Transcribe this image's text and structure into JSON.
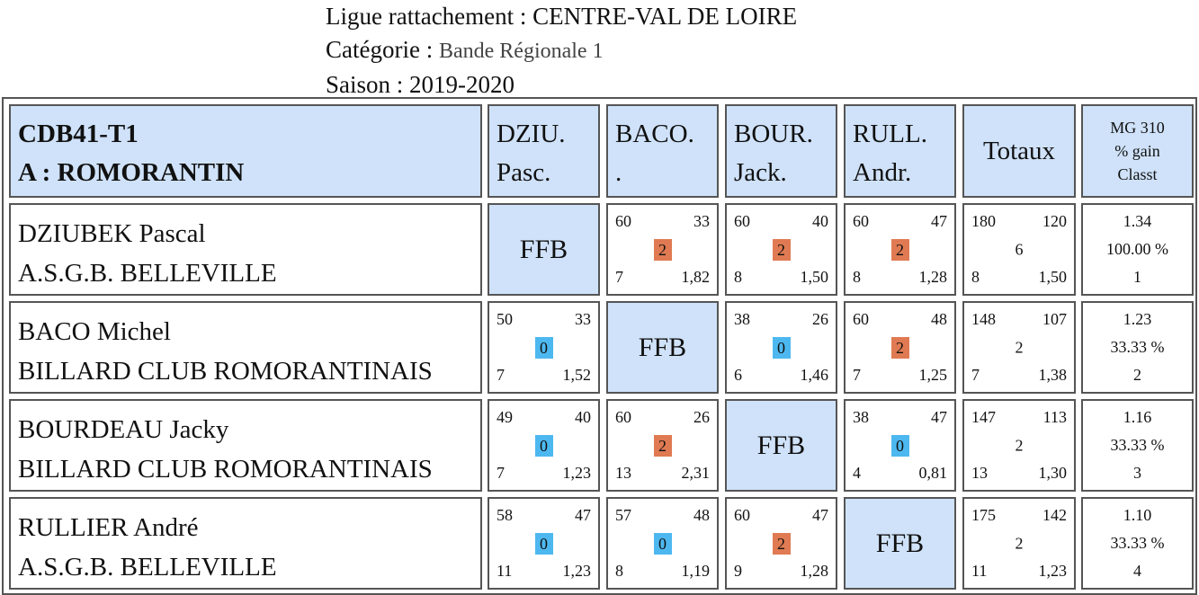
{
  "header": {
    "league_label": "Ligue rattachement : ",
    "league_value": "CENTRE-VAL DE LOIRE",
    "category_label": "Catégorie : ",
    "category_value": "Bande Régionale 1",
    "season_label": "Saison : ",
    "season_value": "2019-2020"
  },
  "table": {
    "team_code": "CDB41-T1",
    "team_name": "A : ROMORANTIN",
    "columns": [
      {
        "l1": "DZIU.",
        "l2": "Pasc."
      },
      {
        "l1": "BACO.",
        "l2": "."
      },
      {
        "l1": "BOUR.",
        "l2": "Jack."
      },
      {
        "l1": "RULL.",
        "l2": "Andr."
      }
    ],
    "totals_label": "Totaux",
    "mg_label": "MG 310",
    "gain_label": "% gain",
    "rank_label": "Classt",
    "self_label": "FFB",
    "rows": [
      {
        "name": "DZIUBEK Pascal",
        "club": "A.S.G.B. BELLEVILLE",
        "results": [
          null,
          {
            "pts": "60",
            "opp": "33",
            "score": "2",
            "innings": "7",
            "avg": "1,82"
          },
          {
            "pts": "60",
            "opp": "40",
            "score": "2",
            "innings": "8",
            "avg": "1,50"
          },
          {
            "pts": "60",
            "opp": "47",
            "score": "2",
            "innings": "8",
            "avg": "1,28"
          }
        ],
        "totals": {
          "pts": "180",
          "opp": "120",
          "score": "6",
          "innings": "8",
          "avg": "1,50"
        },
        "mg": "1.34",
        "gain": "100.00 %",
        "rank": "1"
      },
      {
        "name": "BACO Michel",
        "club": "BILLARD CLUB ROMORANTINAIS",
        "results": [
          {
            "pts": "50",
            "opp": "33",
            "score": "0",
            "innings": "7",
            "avg": "1,52"
          },
          null,
          {
            "pts": "38",
            "opp": "26",
            "score": "0",
            "innings": "6",
            "avg": "1,46"
          },
          {
            "pts": "60",
            "opp": "48",
            "score": "2",
            "innings": "7",
            "avg": "1,25"
          }
        ],
        "totals": {
          "pts": "148",
          "opp": "107",
          "score": "2",
          "innings": "7",
          "avg": "1,38"
        },
        "mg": "1.23",
        "gain": "33.33 %",
        "rank": "2"
      },
      {
        "name": "BOURDEAU Jacky",
        "club": "BILLARD CLUB ROMORANTINAIS",
        "results": [
          {
            "pts": "49",
            "opp": "40",
            "score": "0",
            "innings": "7",
            "avg": "1,23"
          },
          {
            "pts": "60",
            "opp": "26",
            "score": "2",
            "innings": "13",
            "avg": "2,31"
          },
          null,
          {
            "pts": "38",
            "opp": "47",
            "score": "0",
            "innings": "4",
            "avg": "0,81"
          }
        ],
        "totals": {
          "pts": "147",
          "opp": "113",
          "score": "2",
          "innings": "13",
          "avg": "1,30"
        },
        "mg": "1.16",
        "gain": "33.33 %",
        "rank": "3"
      },
      {
        "name": "RULLIER André",
        "club": "A.S.G.B. BELLEVILLE",
        "results": [
          {
            "pts": "58",
            "opp": "47",
            "score": "0",
            "innings": "11",
            "avg": "1,23"
          },
          {
            "pts": "57",
            "opp": "48",
            "score": "0",
            "innings": "8",
            "avg": "1,19"
          },
          {
            "pts": "60",
            "opp": "47",
            "score": "2",
            "innings": "9",
            "avg": "1,28"
          },
          null
        ],
        "totals": {
          "pts": "175",
          "opp": "142",
          "score": "2",
          "innings": "11",
          "avg": "1,23"
        },
        "mg": "1.10",
        "gain": "33.33 %",
        "rank": "4"
      }
    ]
  },
  "colors": {
    "header_bg": "#cfe2f9",
    "win_badge": "#e07a52",
    "loss_badge": "#4db8f0",
    "border": "#555555"
  }
}
